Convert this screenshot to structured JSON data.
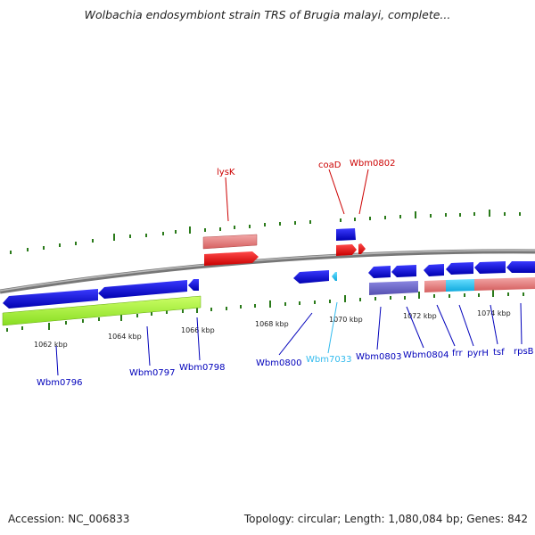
{
  "title": "Wolbachia endosymbiont strain TRS of Brugia malayi, complete...",
  "footer": {
    "accession": "Accession: NC_006833",
    "summary": "Topology: circular; Length: 1,080,084 bp; Genes: 842"
  },
  "colors": {
    "backbone": "#8a8a8a",
    "tick": "#2a7a1a",
    "forward_label": "#cc0000",
    "reverse_label": "#0000bb",
    "rna_label": "#33bbee"
  },
  "scale_labels": [
    "1062 kbp",
    "1064 kbp",
    "1066 kbp",
    "1068 kbp",
    "1070 kbp",
    "1072 kbp",
    "1074 kbp"
  ],
  "forward_labels": [
    "lysK",
    "coaD",
    "Wbm0802"
  ],
  "reverse_labels": [
    "Wbm0796",
    "Wbm0797",
    "Wbm0798",
    "Wbm0800",
    "Wbm7033",
    "Wbm0803",
    "Wbm0804",
    "frr",
    "pyrH",
    "tsf",
    "rpsB"
  ]
}
